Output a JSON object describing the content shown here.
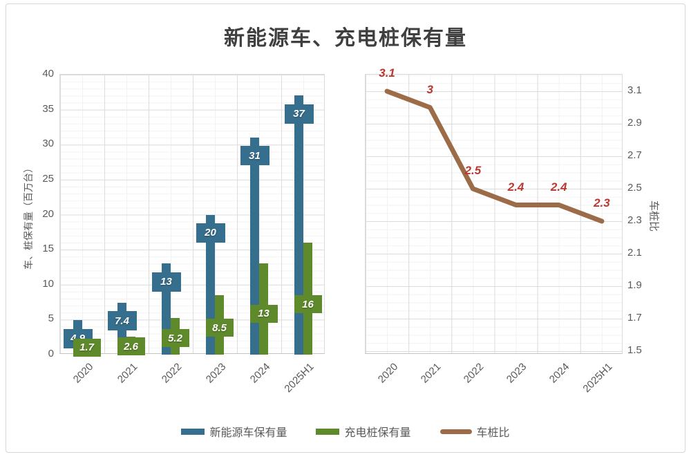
{
  "title": "新能源车、充电桩保有量",
  "colors": {
    "ev_bar": "#366F8D",
    "pile_bar": "#5F8A2C",
    "ratio_line": "#9C6B47",
    "value_label_red": "#BA382F",
    "title_text": "#3F3F3F",
    "axis_text": "#595959"
  },
  "legend": {
    "items": [
      {
        "label": "新能源车保有量",
        "swatch": "ev_bar"
      },
      {
        "label": "充电桩保有量",
        "swatch": "pile_bar"
      },
      {
        "label": "车桩比",
        "swatch": "ratio_line"
      }
    ]
  },
  "chart_data": [
    {
      "type": "bar",
      "title": "新能源车、充电桩保有量",
      "categories": [
        "2020",
        "2021",
        "2022",
        "2023",
        "2024",
        "2025H1"
      ],
      "series": [
        {
          "name": "新能源车保有量",
          "values": [
            4.9,
            7.4,
            13,
            20,
            31,
            37
          ],
          "labels": [
            "4.9",
            "7.4",
            "13",
            "20",
            "31",
            "37"
          ],
          "color_key": "ev_bar"
        },
        {
          "name": "充电桩保有量",
          "values": [
            1.7,
            2.6,
            5.2,
            8.5,
            13,
            16
          ],
          "labels": [
            "1.7",
            "2.6",
            "5.2",
            "8.5",
            "13",
            "16"
          ],
          "color_key": "pile_bar"
        }
      ],
      "ylabel": "车、桩保有量（百万台）",
      "ylim": [
        0,
        40
      ],
      "yticks": [
        "0",
        "5",
        "10",
        "15",
        "20",
        "25",
        "30",
        "35",
        "40"
      ],
      "grid": true,
      "legend_position": "bottom"
    },
    {
      "type": "line",
      "categories": [
        "2020",
        "2021",
        "2022",
        "2023",
        "2024",
        "2025H1"
      ],
      "series": [
        {
          "name": "车桩比",
          "values": [
            3.1,
            3.0,
            2.5,
            2.4,
            2.4,
            2.3
          ],
          "labels": [
            "3.1",
            "3",
            "2.5",
            "2.4",
            "2.4",
            "2.3"
          ],
          "color_key": "ratio_line"
        }
      ],
      "ylabel": "车桩比",
      "ylim": [
        1.48,
        3.22
      ],
      "yticks": [
        "1.5",
        "1.7",
        "1.9",
        "2.1",
        "2.3",
        "2.5",
        "2.7",
        "2.9",
        "3.1"
      ],
      "grid": true
    }
  ]
}
